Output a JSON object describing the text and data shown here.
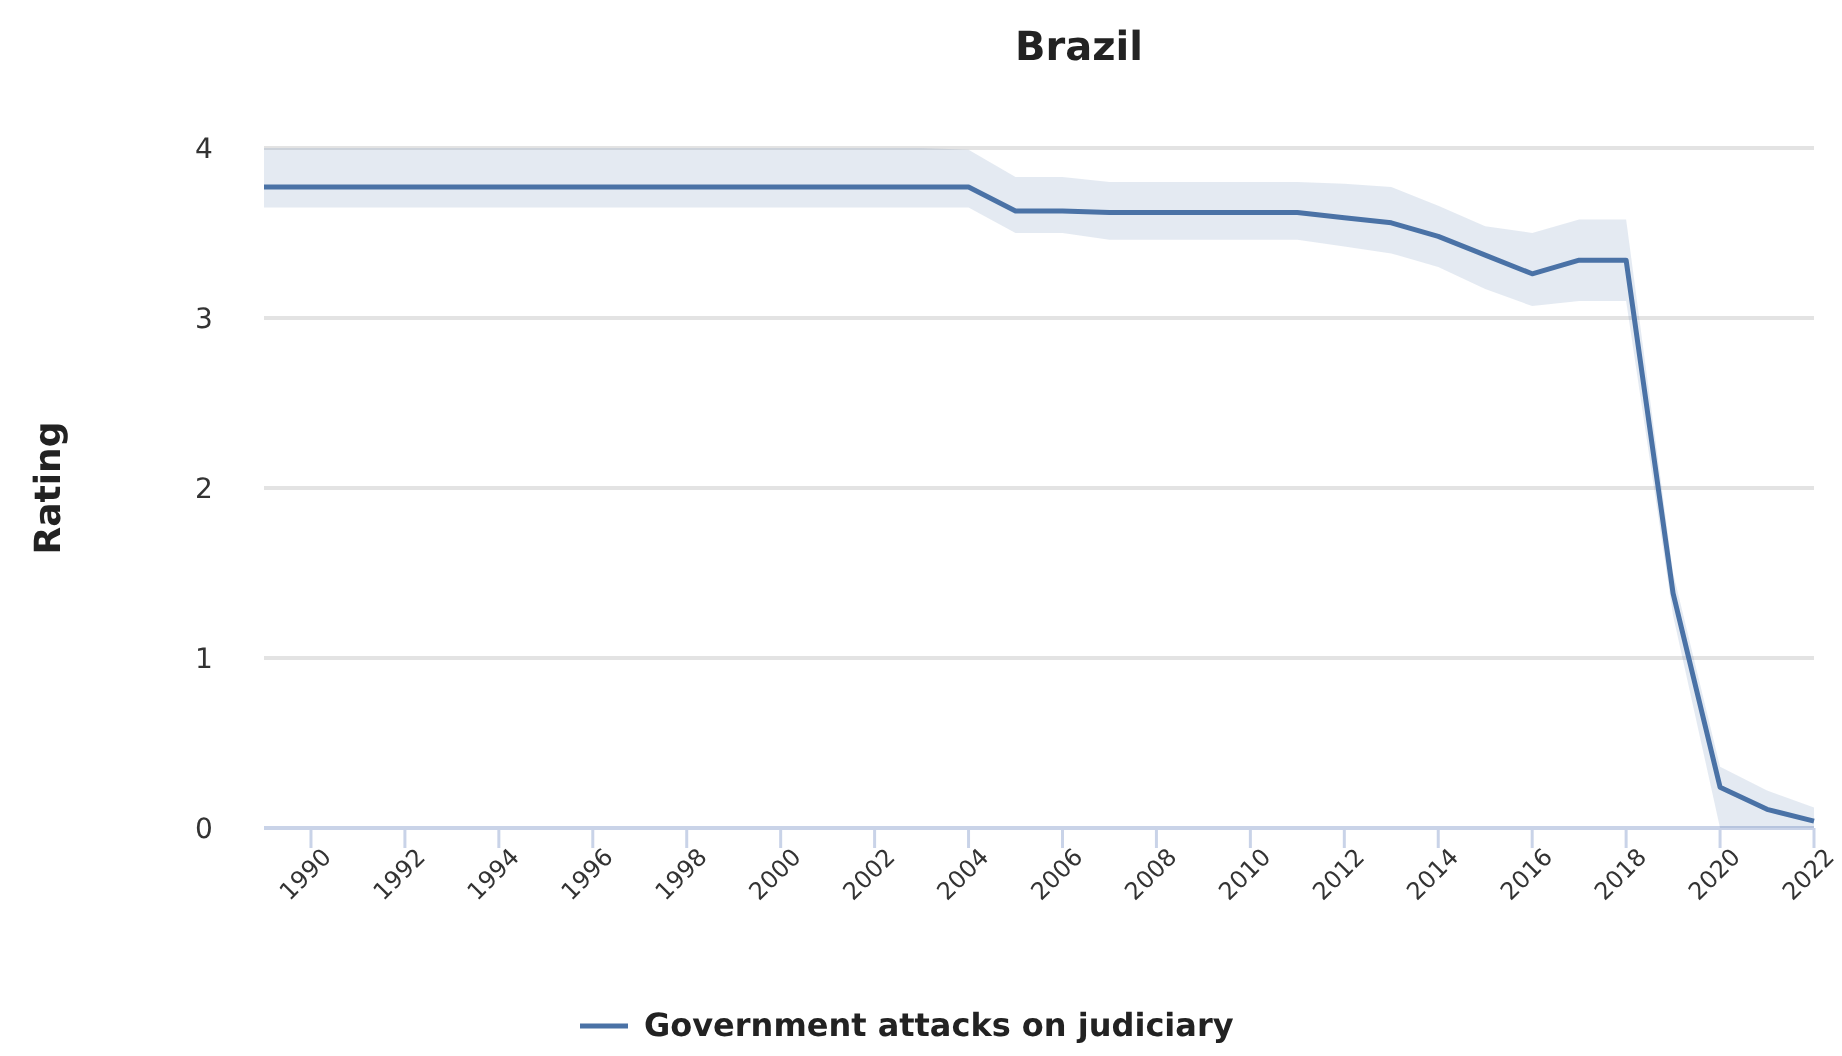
{
  "chart_data": {
    "type": "line",
    "title": "Brazil",
    "ylabel": "Rating",
    "x": [
      1989,
      1990,
      1991,
      1992,
      1993,
      1994,
      1995,
      1996,
      1997,
      1998,
      1999,
      2000,
      2001,
      2002,
      2003,
      2004,
      2005,
      2006,
      2007,
      2008,
      2009,
      2010,
      2011,
      2012,
      2013,
      2014,
      2015,
      2016,
      2017,
      2018,
      2019,
      2020,
      2021,
      2022
    ],
    "series": [
      {
        "name": "Government attacks on judiciary",
        "color": "#4a72a6",
        "values": [
          3.77,
          3.77,
          3.77,
          3.77,
          3.77,
          3.77,
          3.77,
          3.77,
          3.77,
          3.77,
          3.77,
          3.77,
          3.77,
          3.77,
          3.77,
          3.77,
          3.63,
          3.63,
          3.62,
          3.62,
          3.62,
          3.62,
          3.62,
          3.59,
          3.56,
          3.48,
          3.37,
          3.26,
          3.34,
          3.34,
          1.38,
          0.24,
          0.11,
          0.04
        ],
        "lower": [
          3.65,
          3.65,
          3.65,
          3.65,
          3.65,
          3.65,
          3.65,
          3.65,
          3.65,
          3.65,
          3.65,
          3.65,
          3.65,
          3.65,
          3.65,
          3.65,
          3.5,
          3.5,
          3.46,
          3.46,
          3.46,
          3.46,
          3.46,
          3.42,
          3.38,
          3.3,
          3.17,
          3.07,
          3.1,
          3.1,
          1.25,
          0,
          0,
          0
        ],
        "upper": [
          4,
          4,
          4,
          4,
          4,
          4,
          4,
          4,
          4,
          4,
          4,
          4,
          4,
          4,
          4,
          3.99,
          3.83,
          3.83,
          3.8,
          3.8,
          3.8,
          3.8,
          3.8,
          3.79,
          3.77,
          3.66,
          3.54,
          3.5,
          3.58,
          3.58,
          1.5,
          0.36,
          0.22,
          0.12
        ]
      }
    ],
    "xlim": [
      1989,
      2022
    ],
    "xticks": [
      1990,
      1992,
      1994,
      1996,
      1998,
      2000,
      2002,
      2004,
      2006,
      2008,
      2010,
      2012,
      2014,
      2016,
      2018,
      2020,
      2022
    ],
    "ylim": [
      0,
      4
    ],
    "yticks": [
      0,
      1,
      2,
      3,
      4
    ],
    "grid": "y",
    "legend": "bottom",
    "marker": "none",
    "line_style": "solid"
  }
}
